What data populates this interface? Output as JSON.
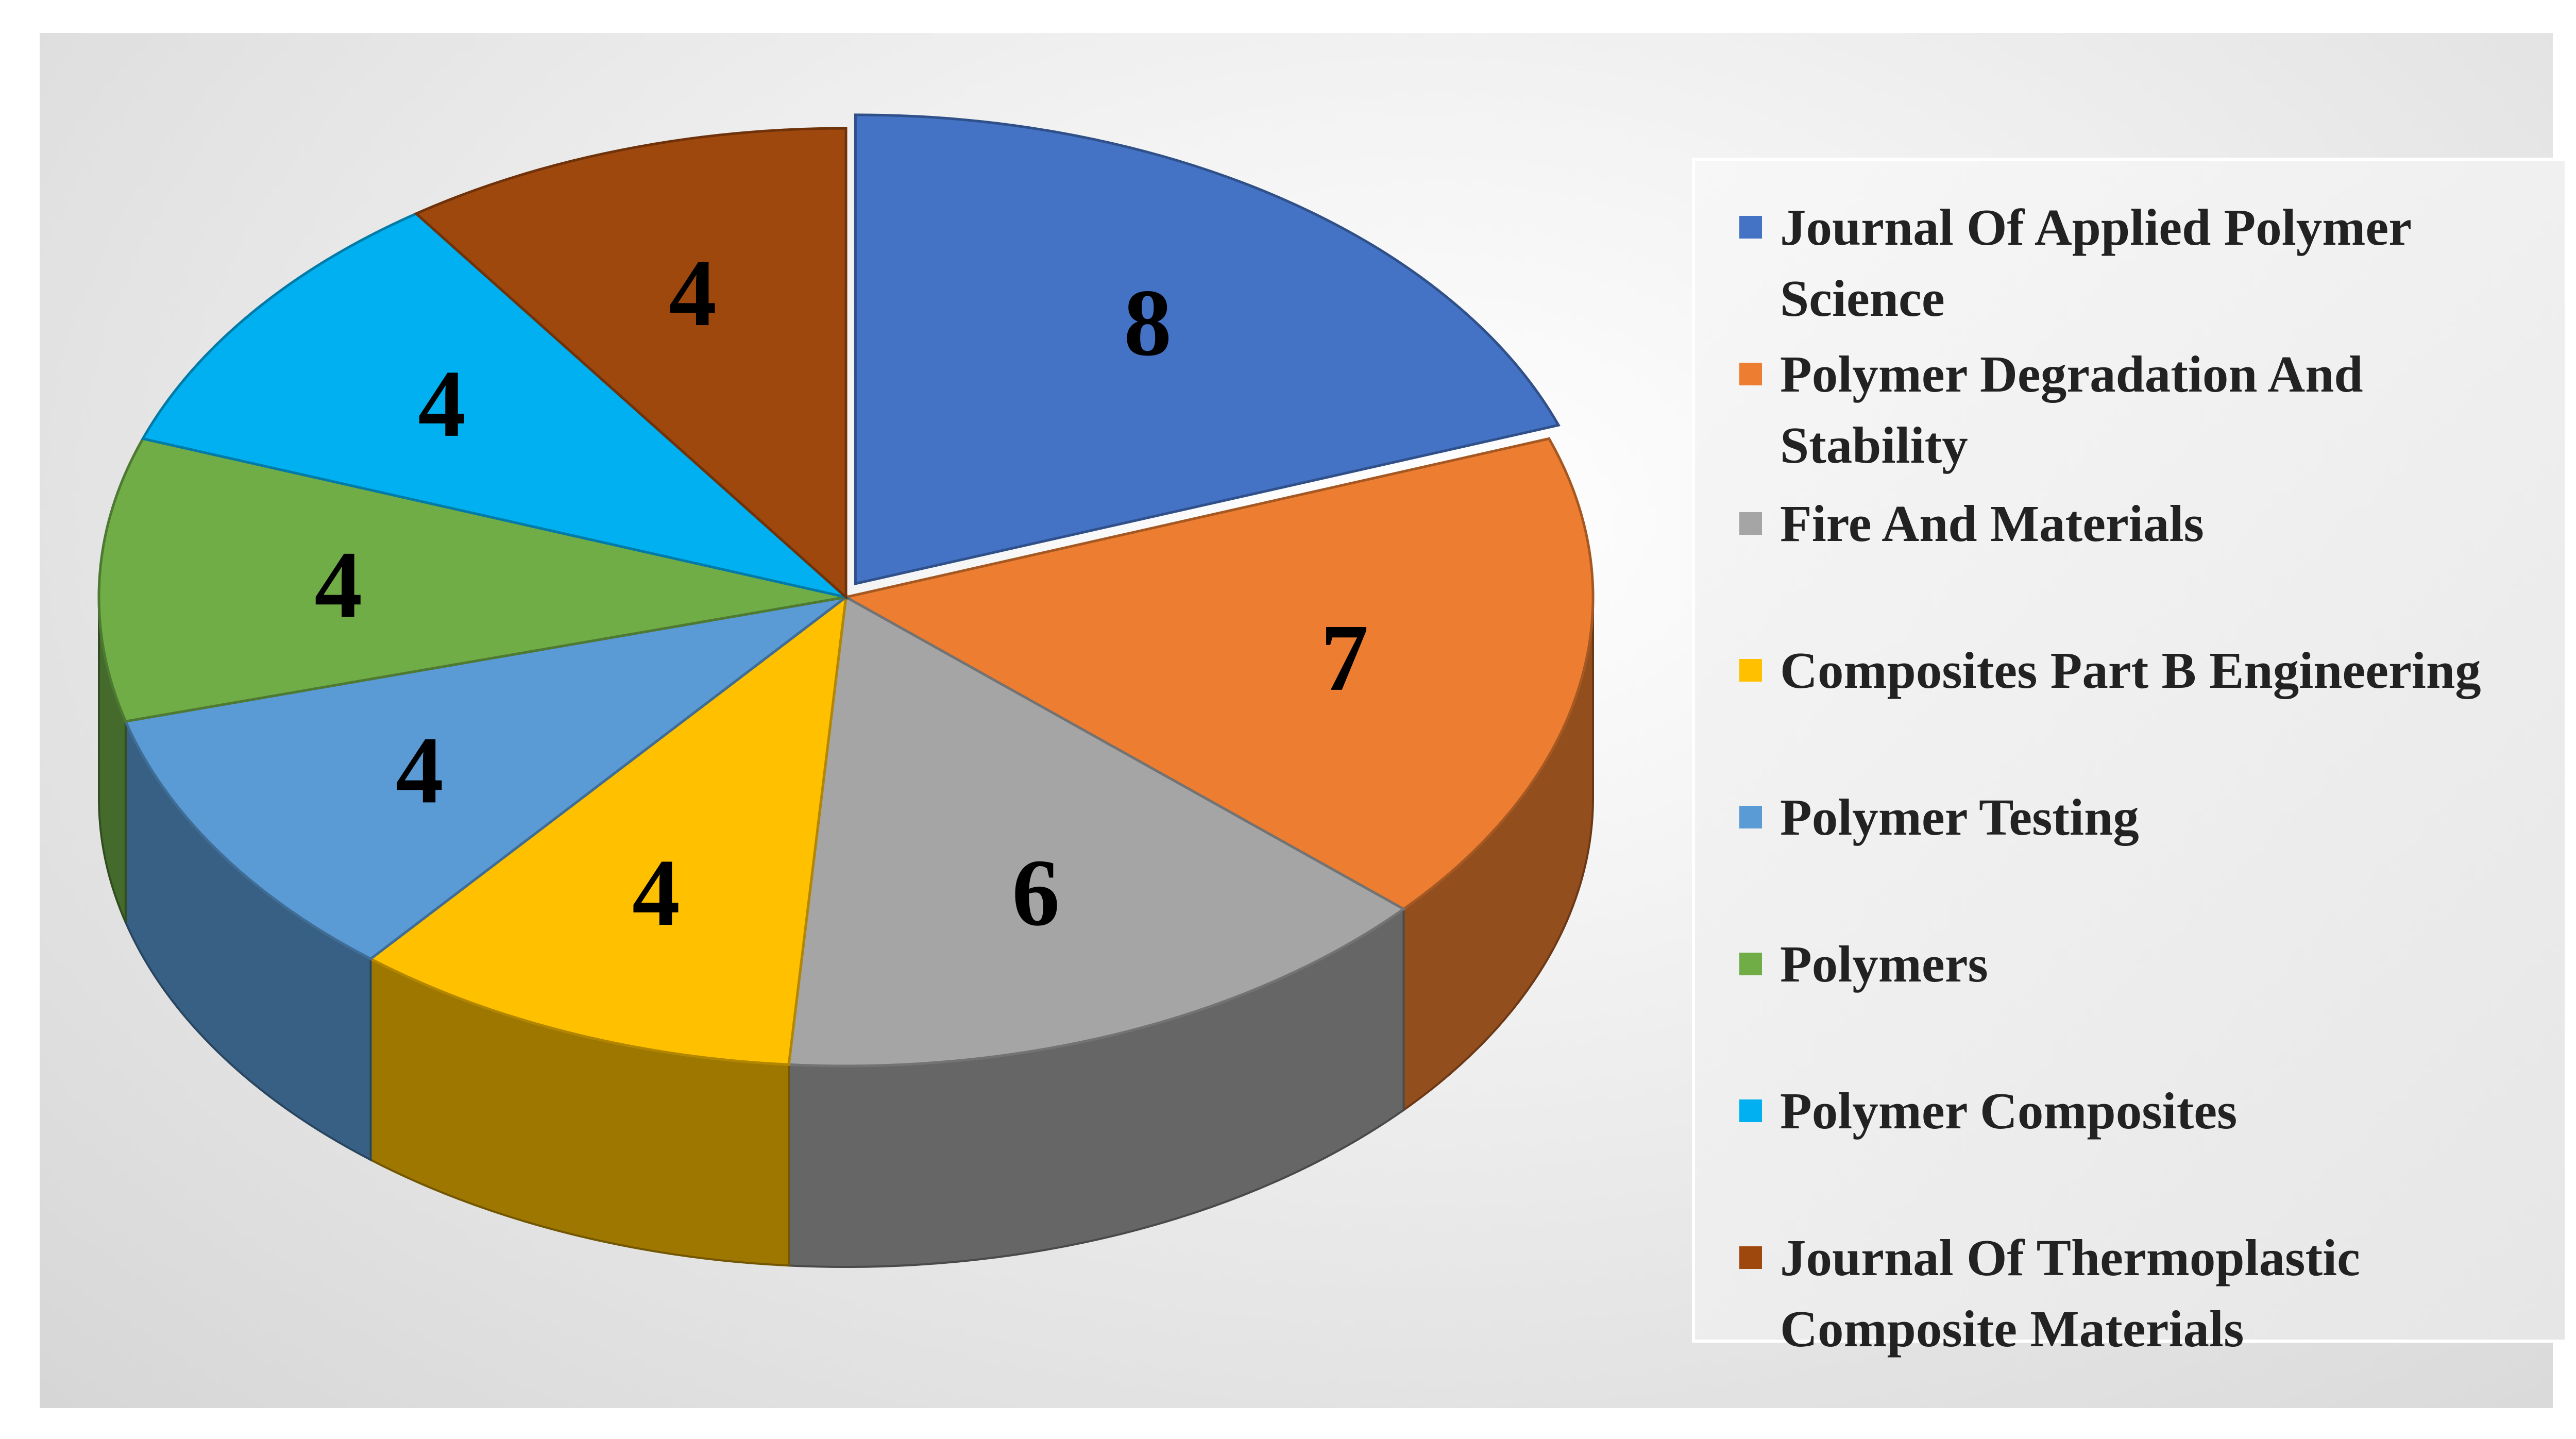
{
  "chart_data": {
    "type": "pie",
    "style": "3d",
    "title": "",
    "slices": [
      {
        "label": "Journal Of Applied Polymer Science",
        "value": 8,
        "color": "#4472C4"
      },
      {
        "label": "Polymer Degradation And Stability",
        "value": 7,
        "color": "#ED7D31"
      },
      {
        "label": "Fire And Materials",
        "value": 6,
        "color": "#A5A5A5"
      },
      {
        "label": "Composites Part B Engineering",
        "value": 4,
        "color": "#FFC000"
      },
      {
        "label": "Polymer Testing",
        "value": 4,
        "color": "#5B9BD5"
      },
      {
        "label": "Polymers",
        "value": 4,
        "color": "#70AD47"
      },
      {
        "label": "Polymer Composites",
        "value": 4,
        "color": "#00B0F0"
      },
      {
        "label": "Journal Of Thermoplastic Composite Materials",
        "value": 4,
        "color": "#9E480E"
      }
    ],
    "legend_position": "right"
  }
}
